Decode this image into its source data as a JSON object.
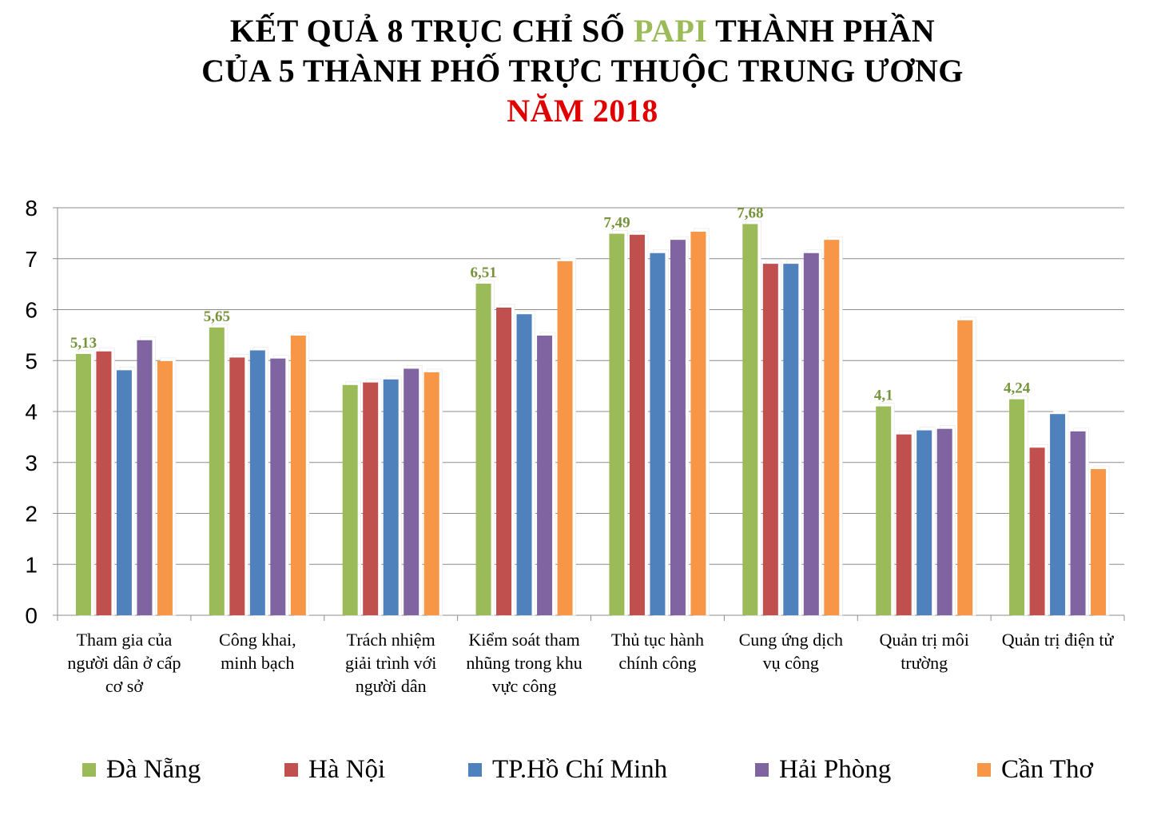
{
  "title": {
    "line1_part1": "KẾT QUẢ 8 TRỤC CHỈ SỐ ",
    "line1_highlight": "PAPI",
    "line1_part2": " THÀNH PHẦN",
    "line2": "CỦA 5 THÀNH PHỐ TRỰC THUỘC TRUNG ƯƠNG",
    "line3": "NĂM 2018"
  },
  "colors": {
    "highlight": "#9BBB59",
    "year": "#E00000",
    "data_label": "#77933C"
  },
  "chart_data": {
    "type": "bar",
    "categories": [
      [
        "Tham gia của",
        "người dân ở cấp",
        "cơ sở"
      ],
      [
        "Công khai,",
        "minh bạch"
      ],
      [
        "Trách nhiệm",
        "giải trình với",
        "người dân"
      ],
      [
        "Kiểm soát tham",
        "nhũng trong khu",
        "vực công"
      ],
      [
        "Thủ tục hành",
        "chính công"
      ],
      [
        "Cung ứng dịch",
        "vụ công"
      ],
      [
        "Quản trị môi",
        "trường"
      ],
      [
        "Quản trị điện tử"
      ]
    ],
    "series": [
      {
        "name": "Đà Nẵng",
        "color": "#9BBB59",
        "values": [
          5.13,
          5.65,
          4.52,
          6.51,
          7.49,
          7.68,
          4.1,
          4.24
        ]
      },
      {
        "name": "Hà Nội",
        "color": "#C0504D",
        "values": [
          5.18,
          5.06,
          4.57,
          6.04,
          7.47,
          6.9,
          3.55,
          3.29
        ]
      },
      {
        "name": "TP.Hồ Chí Minh",
        "color": "#4F81BD",
        "values": [
          4.81,
          5.2,
          4.63,
          5.91,
          7.11,
          6.9,
          3.63,
          3.95
        ]
      },
      {
        "name": "Hải Phòng",
        "color": "#8064A2",
        "values": [
          5.4,
          5.04,
          4.84,
          5.49,
          7.37,
          7.11,
          3.66,
          3.61
        ]
      },
      {
        "name": "Cần Thơ",
        "color": "#F79646",
        "values": [
          4.99,
          5.49,
          4.77,
          6.95,
          7.53,
          7.37,
          5.79,
          2.87
        ]
      }
    ],
    "data_labels": [
      {
        "series": 0,
        "category": 0,
        "text": "5,13"
      },
      {
        "series": 0,
        "category": 1,
        "text": "5,65"
      },
      {
        "series": 0,
        "category": 3,
        "text": "6,51"
      },
      {
        "series": 0,
        "category": 4,
        "text": "7,49"
      },
      {
        "series": 0,
        "category": 5,
        "text": "7,68"
      },
      {
        "series": 0,
        "category": 6,
        "text": "4,1"
      },
      {
        "series": 0,
        "category": 7,
        "text": "4,24"
      }
    ],
    "y_ticks": [
      "0",
      "1",
      "2",
      "3",
      "4",
      "5",
      "6",
      "7",
      "8"
    ],
    "ylim": [
      0,
      8
    ],
    "grid": true,
    "legend_position": "bottom"
  }
}
